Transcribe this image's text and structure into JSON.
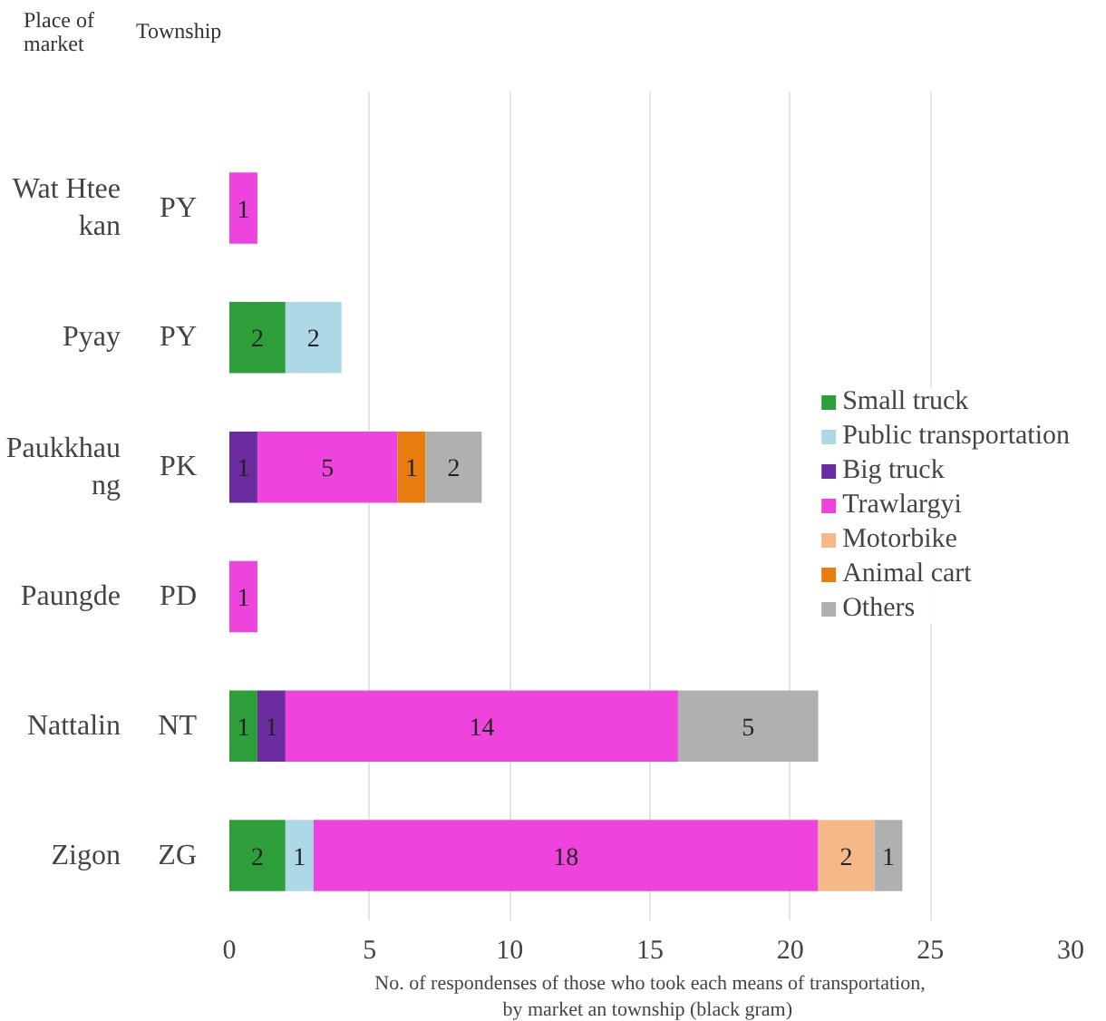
{
  "chart_data": {
    "type": "bar",
    "orientation": "horizontal",
    "stacked": true,
    "categories": [
      "Wat Htee kan",
      "Pyay",
      "Paukkhaung",
      "Paungde",
      "Nattalin",
      "Zigon"
    ],
    "y2_categories": [
      "PY",
      "PY",
      "PK",
      "PD",
      "NT",
      "ZG"
    ],
    "annotations": [
      "Place of market",
      "Township"
    ],
    "xlabel": "No. of respondenses of those who took each means of transportation,\nby market an  township (black gram)",
    "xlim": [
      0,
      30
    ],
    "xticks": [
      0,
      5,
      10,
      15,
      20,
      25,
      30
    ],
    "series": [
      {
        "name": "Small truck",
        "color": "#2e9e3a",
        "values": [
          null,
          2,
          null,
          null,
          1,
          2
        ]
      },
      {
        "name": "Public transportation",
        "color": "#add8e6",
        "values": [
          null,
          2,
          null,
          null,
          null,
          1
        ]
      },
      {
        "name": "Big truck",
        "color": "#6a2c9e",
        "values": [
          null,
          null,
          1,
          null,
          1,
          null
        ]
      },
      {
        "name": "Trawlargyi",
        "color": "#ee44dd",
        "values": [
          1,
          null,
          5,
          1,
          14,
          18
        ]
      },
      {
        "name": "Motorbike",
        "color": "#f5b889",
        "values": [
          null,
          null,
          null,
          null,
          null,
          2
        ]
      },
      {
        "name": "Animal cart",
        "color": "#e87d0f",
        "values": [
          null,
          null,
          1,
          null,
          null,
          null
        ]
      },
      {
        "name": "Others",
        "color": "#b0b0b0",
        "values": [
          null,
          null,
          2,
          null,
          5,
          1
        ]
      }
    ],
    "data_labels": true,
    "grid": "x",
    "legend": "right"
  }
}
